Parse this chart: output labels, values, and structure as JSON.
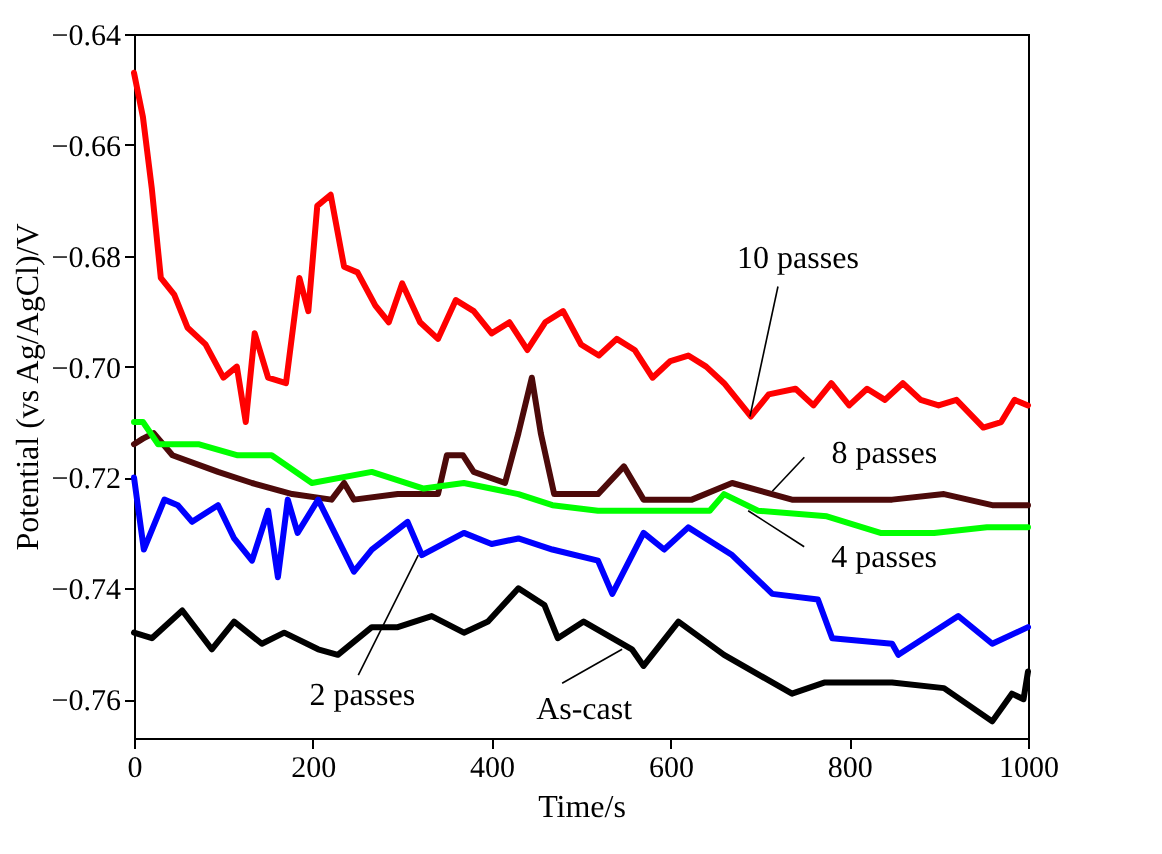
{
  "chart_data": {
    "type": "line",
    "xlabel": "Time/s",
    "ylabel": "Potential (vs Ag/AgCl)/V",
    "xlim": [
      0,
      1000
    ],
    "xticks": [
      0,
      200,
      400,
      600,
      800,
      1000
    ],
    "ylim": [
      -0.767,
      -0.64
    ],
    "yticks": [
      {
        "value": -0.64,
        "label": "−0.64"
      },
      {
        "value": -0.66,
        "label": "−0.66"
      },
      {
        "value": -0.68,
        "label": "−0.68"
      },
      {
        "value": -0.7,
        "label": "−0.70"
      },
      {
        "value": -0.72,
        "label": "−0.72"
      },
      {
        "value": -0.74,
        "label": "−0.74"
      },
      {
        "value": -0.76,
        "label": "−0.76"
      }
    ],
    "grid": false,
    "legend": false,
    "marker": "none",
    "line_style": "solid",
    "series": [
      {
        "color": "#ff0000",
        "x": [
          0,
          5,
          10,
          20,
          30,
          45,
          60,
          80,
          100,
          115,
          125,
          135,
          150,
          170,
          185,
          195,
          205,
          220,
          235,
          250,
          270,
          285,
          300,
          320,
          340,
          360,
          380,
          400,
          420,
          440,
          460,
          480,
          500,
          520,
          540,
          560,
          580,
          600,
          620,
          640,
          660,
          690,
          710,
          740,
          760,
          780,
          800,
          820,
          840,
          860,
          880,
          900,
          920,
          950,
          970,
          985,
          1000
        ],
        "values": [
          -0.647,
          -0.651,
          -0.655,
          -0.668,
          -0.684,
          -0.687,
          -0.693,
          -0.696,
          -0.702,
          -0.7,
          -0.71,
          -0.694,
          -0.702,
          -0.703,
          -0.684,
          -0.69,
          -0.671,
          -0.669,
          -0.682,
          -0.683,
          -0.689,
          -0.692,
          -0.685,
          -0.692,
          -0.695,
          -0.688,
          -0.69,
          -0.694,
          -0.692,
          -0.697,
          -0.692,
          -0.69,
          -0.696,
          -0.698,
          -0.695,
          -0.697,
          -0.702,
          -0.699,
          -0.698,
          -0.7,
          -0.703,
          -0.709,
          -0.705,
          -0.704,
          -0.707,
          -0.703,
          -0.707,
          -0.704,
          -0.706,
          -0.703,
          -0.706,
          -0.707,
          -0.706,
          -0.711,
          -0.71,
          -0.706,
          -0.707
        ]
      },
      {
        "color": "#4d0a0a",
        "x": [
          0,
          10,
          22,
          43,
          94,
          132,
          177,
          221,
          235,
          246,
          295,
          340,
          350,
          368,
          380,
          415,
          430,
          445,
          455,
          470,
          519,
          548,
          570,
          624,
          669,
          736,
          800,
          848,
          906,
          960,
          1000
        ],
        "values": [
          -0.714,
          -0.713,
          -0.712,
          -0.716,
          -0.719,
          -0.721,
          -0.723,
          -0.724,
          -0.721,
          -0.724,
          -0.723,
          -0.723,
          -0.716,
          -0.716,
          -0.719,
          -0.721,
          -0.712,
          -0.702,
          -0.712,
          -0.723,
          -0.723,
          -0.718,
          -0.724,
          -0.724,
          -0.721,
          -0.724,
          -0.724,
          -0.724,
          -0.723,
          -0.725,
          -0.725
        ]
      },
      {
        "color": "#00ff00",
        "x": [
          0,
          10,
          27,
          72,
          116,
          154,
          199,
          266,
          324,
          369,
          430,
          468,
          519,
          570,
          644,
          660,
          698,
          775,
          835,
          895,
          954,
          1000
        ],
        "values": [
          -0.71,
          -0.71,
          -0.714,
          -0.714,
          -0.716,
          -0.716,
          -0.721,
          -0.719,
          -0.722,
          -0.721,
          -0.723,
          -0.725,
          -0.726,
          -0.726,
          -0.726,
          -0.723,
          -0.726,
          -0.727,
          -0.73,
          -0.73,
          -0.729,
          -0.729
        ]
      },
      {
        "color": "#0000ff",
        "x": [
          0,
          11,
          34,
          49,
          65,
          94,
          112,
          132,
          150,
          161,
          172,
          183,
          206,
          246,
          266,
          306,
          322,
          369,
          400,
          430,
          468,
          519,
          535,
          570,
          593,
          620,
          669,
          714,
          765,
          781,
          848,
          855,
          922,
          960,
          1000
        ],
        "values": [
          -0.72,
          -0.733,
          -0.724,
          -0.725,
          -0.728,
          -0.725,
          -0.731,
          -0.735,
          -0.726,
          -0.738,
          -0.724,
          -0.73,
          -0.724,
          -0.737,
          -0.733,
          -0.728,
          -0.734,
          -0.73,
          -0.732,
          -0.731,
          -0.733,
          -0.735,
          -0.741,
          -0.73,
          -0.733,
          -0.729,
          -0.734,
          -0.741,
          -0.742,
          -0.749,
          -0.75,
          -0.752,
          -0.745,
          -0.75,
          -0.747
        ]
      },
      {
        "color": "#000000",
        "x": [
          0,
          20,
          54,
          87,
          112,
          143,
          168,
          206,
          228,
          266,
          295,
          333,
          369,
          396,
          430,
          459,
          474,
          503,
          557,
          570,
          609,
          660,
          736,
          772,
          848,
          906,
          960,
          982,
          995,
          1000
        ],
        "values": [
          -0.748,
          -0.749,
          -0.744,
          -0.751,
          -0.746,
          -0.75,
          -0.748,
          -0.751,
          -0.752,
          -0.747,
          -0.747,
          -0.745,
          -0.748,
          -0.746,
          -0.74,
          -0.743,
          -0.749,
          -0.746,
          -0.751,
          -0.754,
          -0.746,
          -0.752,
          -0.759,
          -0.757,
          -0.757,
          -0.758,
          -0.764,
          -0.759,
          -0.76,
          -0.755
        ]
      }
    ],
    "annotations": [
      {
        "text": "10 passes",
        "x": 689,
        "y": -0.709
      },
      {
        "text": "8 passes",
        "x": 714,
        "y": -0.7225
      },
      {
        "text": "4 passes",
        "x": 687,
        "y": -0.726
      },
      {
        "text": "2 passes",
        "x": 318,
        "y": -0.734
      },
      {
        "text": "As-cast",
        "x": 546,
        "y": -0.751
      }
    ]
  }
}
